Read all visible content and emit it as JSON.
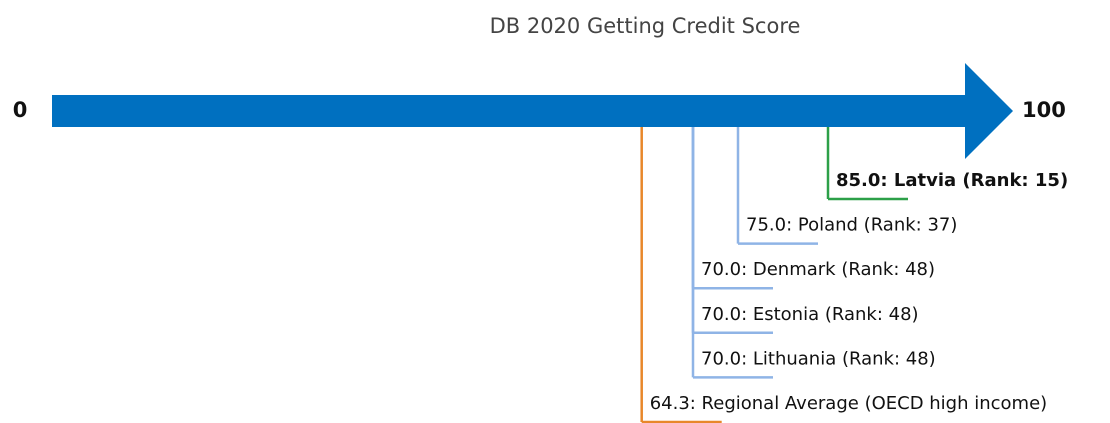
{
  "chart_data": {
    "type": "arrow-scale",
    "title": "DB 2020 Getting Credit Score",
    "xlim": [
      0,
      100
    ],
    "xticks": [
      0,
      100
    ],
    "labels": [
      "85.0: Latvia (Rank: 15)",
      "75.0: Poland (Rank: 37)",
      "70.0: Denmark (Rank: 48)",
      "70.0: Estonia (Rank: 48)",
      "70.0: Lithuania (Rank: 48)",
      "64.3: Regional Average (OECD high income)"
    ],
    "values": [
      85.0,
      75.0,
      70.0,
      70.0,
      70.0,
      64.3
    ],
    "colors": [
      "#2ca048",
      "#8fb4e6",
      "#8fb4e6",
      "#8fb4e6",
      "#8fb4e6",
      "#e8872a"
    ],
    "bold": [
      true,
      false,
      false,
      false,
      false,
      false
    ],
    "arrow_color": "#0070c0"
  }
}
